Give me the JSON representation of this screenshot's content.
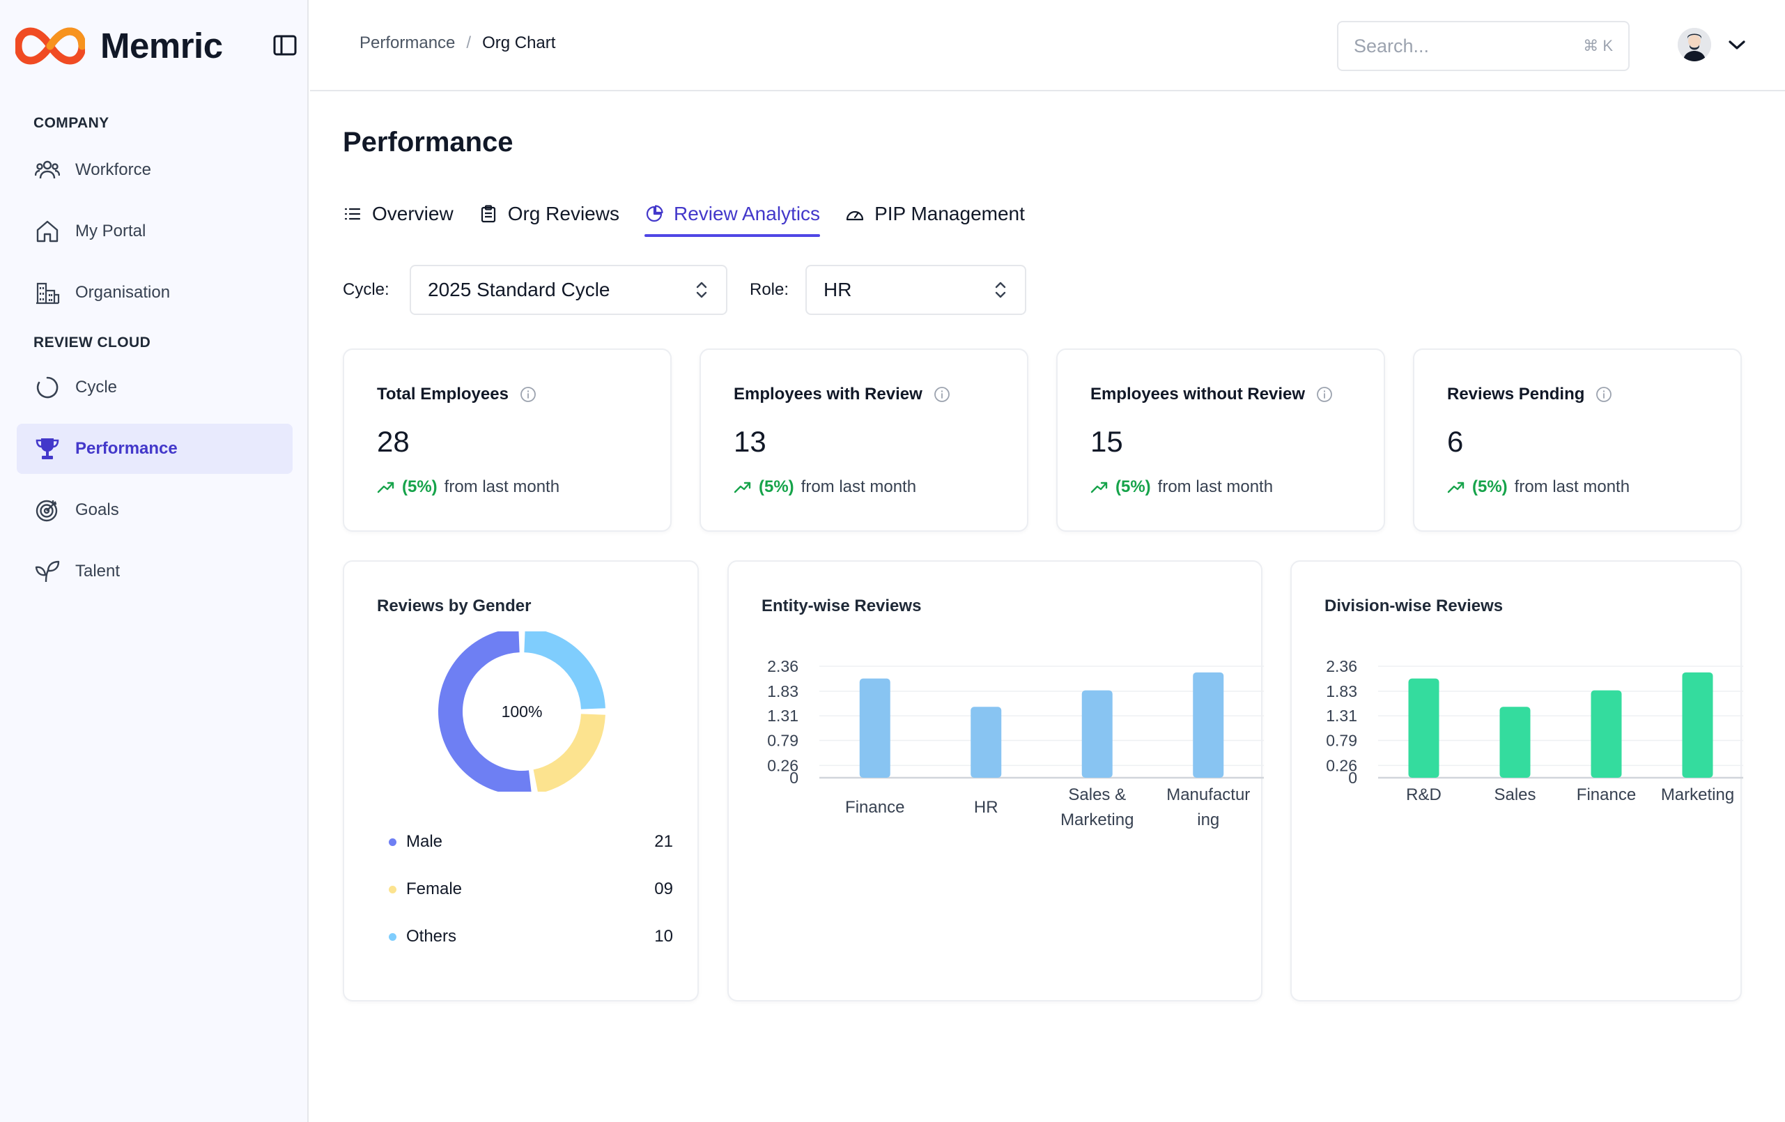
{
  "app": {
    "name": "Memric"
  },
  "sidebar": {
    "sections": [
      {
        "label": "COMPANY"
      },
      {
        "label": "REVIEW CLOUD"
      }
    ],
    "items": [
      {
        "label": "Workforce",
        "icon": "users-icon"
      },
      {
        "label": "My Portal",
        "icon": "home-icon"
      },
      {
        "label": "Organisation",
        "icon": "building-icon"
      },
      {
        "label": "Cycle",
        "icon": "circle-loader-icon"
      },
      {
        "label": "Performance",
        "icon": "trophy-icon",
        "active": true
      },
      {
        "label": "Goals",
        "icon": "target-icon"
      },
      {
        "label": "Talent",
        "icon": "sprout-icon"
      }
    ]
  },
  "header": {
    "breadcrumb": [
      "Performance",
      "Org Chart"
    ],
    "breadcrumb_sep": "/",
    "search_placeholder": "Search...",
    "search_shortcut": "⌘ K"
  },
  "page": {
    "title": "Performance",
    "tabs": [
      {
        "label": "Overview",
        "icon": "list-icon"
      },
      {
        "label": "Org Reviews",
        "icon": "clipboard-icon"
      },
      {
        "label": "Review Analytics",
        "icon": "pie-chart-icon",
        "active": true
      },
      {
        "label": "PIP Management",
        "icon": "gauge-icon"
      }
    ],
    "filters": {
      "cycle_label": "Cycle:",
      "cycle_value": "2025 Standard Cycle",
      "role_label": "Role:",
      "role_value": "HR"
    }
  },
  "stats": [
    {
      "title": "Total Employees",
      "value": "28",
      "trend_pct": "(5%)",
      "trend_text": "from last month"
    },
    {
      "title": "Employees with Review",
      "value": "13",
      "trend_pct": "(5%)",
      "trend_text": "from last month"
    },
    {
      "title": "Employees without Review",
      "value": "15",
      "trend_pct": "(5%)",
      "trend_text": "from last month"
    },
    {
      "title": "Reviews Pending",
      "value": "6",
      "trend_pct": "(5%)",
      "trend_text": "from last month"
    }
  ],
  "colors": {
    "accent": "#4f46e5",
    "trend_up": "#16a34a",
    "entity_bar": "#88c4f2",
    "division_bar": "#34dc9e",
    "male": "#6e7ff3",
    "female": "#fce38f",
    "others": "#7fcdfd"
  },
  "chart_data": [
    {
      "type": "pie",
      "title": "Reviews by Gender",
      "center_label": "100%",
      "categories": [
        "Male",
        "Female",
        "Others"
      ],
      "values": [
        21,
        9,
        10
      ],
      "value_labels": [
        "21",
        "09",
        "10"
      ]
    },
    {
      "type": "bar",
      "title": "Entity-wise Reviews",
      "categories": [
        "Finance",
        "HR",
        "Sales & Marketing",
        "Manufacturing"
      ],
      "category_lines": [
        [
          "Finance"
        ],
        [
          "HR"
        ],
        [
          "Sales &",
          "Marketing"
        ],
        [
          "Manufactur",
          "ing"
        ]
      ],
      "values": [
        2.1,
        1.5,
        1.85,
        2.23
      ],
      "yticks": [
        "0",
        "0.26",
        "0.79",
        "1.31",
        "1.83",
        "2.36"
      ],
      "ylim": [
        0,
        2.36
      ]
    },
    {
      "type": "bar",
      "title": "Division-wise Reviews",
      "categories": [
        "R&D",
        "Sales",
        "Finance",
        "Marketing"
      ],
      "category_lines": [
        [
          "R&D"
        ],
        [
          "Sales"
        ],
        [
          "Finance"
        ],
        [
          "Marketing"
        ]
      ],
      "values": [
        2.1,
        1.5,
        1.85,
        2.23
      ],
      "yticks": [
        "0",
        "0.26",
        "0.79",
        "1.31",
        "1.83",
        "2.36"
      ],
      "ylim": [
        0,
        2.36
      ]
    }
  ]
}
